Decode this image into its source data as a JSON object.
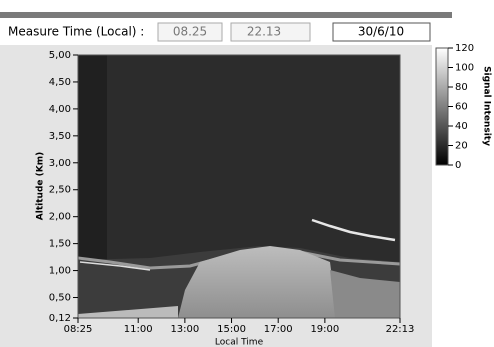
{
  "header": {
    "label": "Measure Time (Local) :",
    "start_time": "08.25",
    "end_time": "22.13",
    "date": "30/6/10"
  },
  "chart_data": {
    "type": "heatmap",
    "xlabel": "Local Time",
    "ylabel": "Altitude (Km)",
    "colorbar_label": "Signal Intensity",
    "xlim": [
      8.42,
      22.22
    ],
    "xticks": [
      {
        "value": 8.42,
        "label": "08:25"
      },
      {
        "value": 11,
        "label": "11:00"
      },
      {
        "value": 13,
        "label": "13:00"
      },
      {
        "value": 15,
        "label": "15:00"
      },
      {
        "value": 17,
        "label": "17:00"
      },
      {
        "value": 19,
        "label": "19:00"
      },
      {
        "value": 22.22,
        "label": "22:13"
      }
    ],
    "ylim": [
      0.12,
      5
    ],
    "yticks": [
      {
        "value": 0.12,
        "label": "0,12"
      },
      {
        "value": 0.5,
        "label": "0,50"
      },
      {
        "value": 1,
        "label": "1,00"
      },
      {
        "value": 1.5,
        "label": "1,50"
      },
      {
        "value": 2,
        "label": "2,00"
      },
      {
        "value": 2.5,
        "label": "2,50"
      },
      {
        "value": 3,
        "label": "3,00"
      },
      {
        "value": 3.5,
        "label": "3,50"
      },
      {
        "value": 4,
        "label": "4,00"
      },
      {
        "value": 4.5,
        "label": "4,50"
      },
      {
        "value": 5,
        "label": "5,00"
      }
    ],
    "zlim": [
      0,
      120
    ],
    "zticks": [
      0,
      20,
      40,
      60,
      80,
      100,
      120
    ]
  }
}
